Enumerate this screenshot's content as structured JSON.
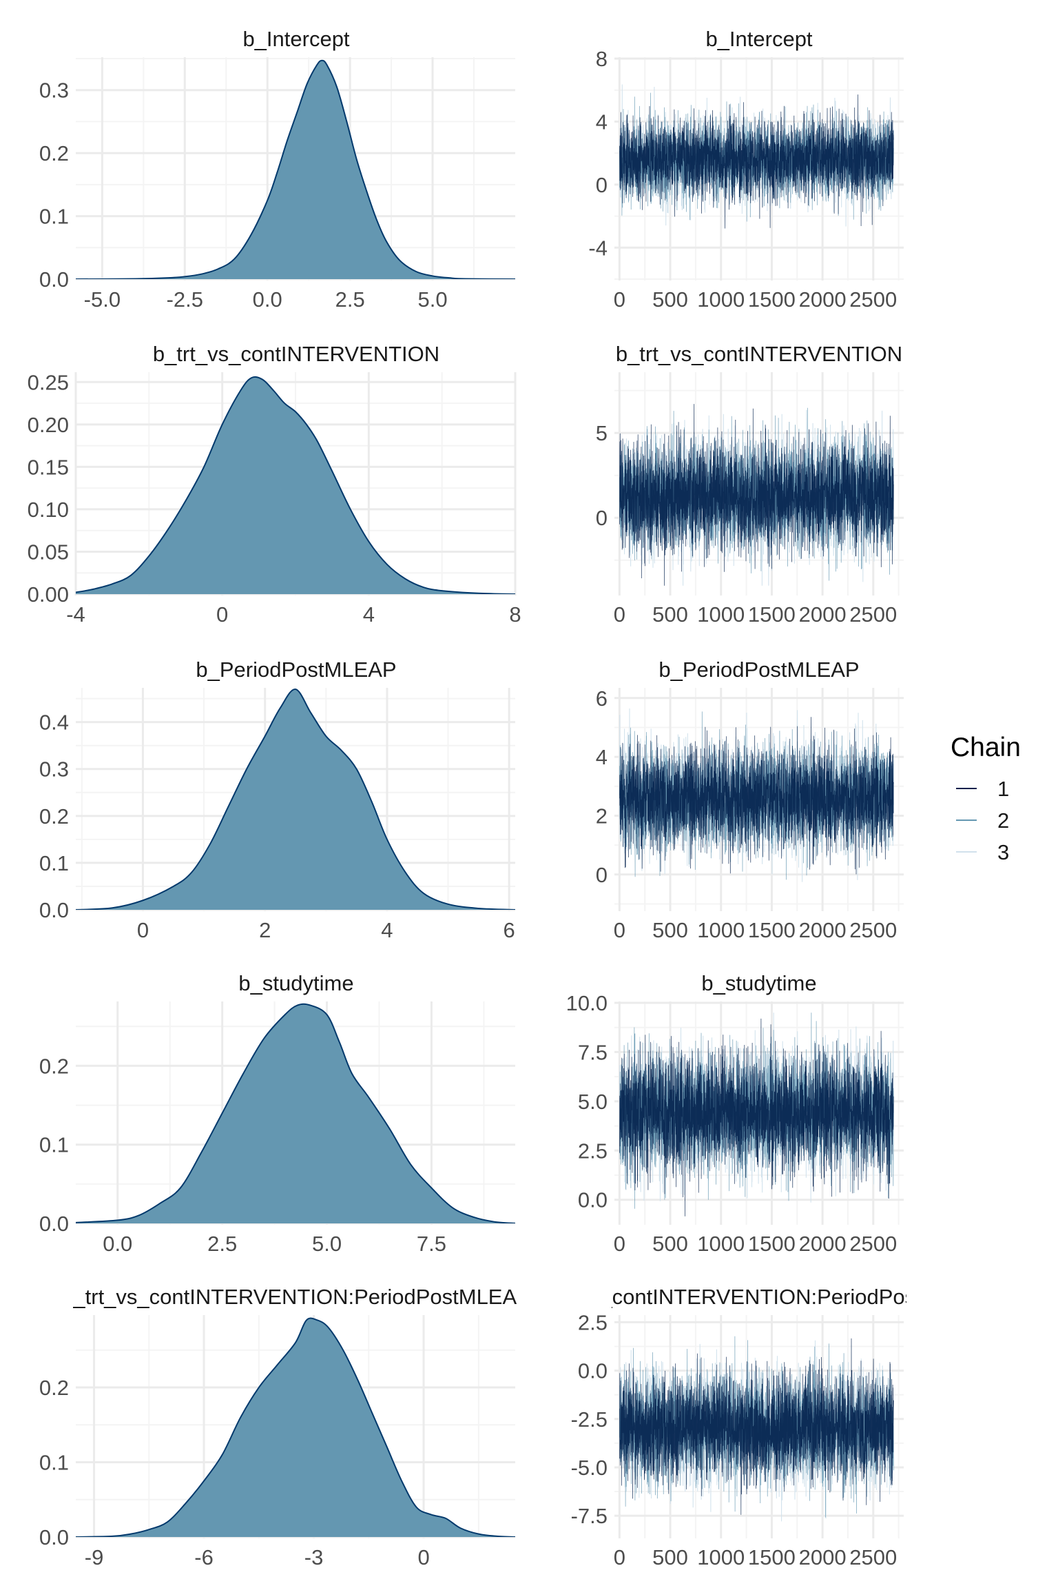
{
  "colors": {
    "density_fill": "#6497b1",
    "density_line": "#03396c",
    "chain_1": "#011f4b",
    "chain_2": "#6497b1",
    "chain_3": "#d1e1ec",
    "grid_major": "#ebebeb",
    "grid_minor": "#f4f4f4"
  },
  "legend": {
    "title": "Chain",
    "placement": "right",
    "items": [
      "1",
      "2",
      "3"
    ]
  },
  "chart_data": [
    {
      "type": "area",
      "kind": "density",
      "title": "b_Intercept",
      "xlim": [
        -5.8,
        7.5
      ],
      "ylim": [
        0,
        0.35
      ],
      "xticks": [
        -5,
        -2.5,
        0,
        2.5,
        5
      ],
      "xtick_labels": [
        "-5.0",
        "-2.5",
        "0.0",
        "2.5",
        "5.0"
      ],
      "yticks": [
        0,
        0.1,
        0.2,
        0.3
      ],
      "ytick_labels": [
        "0.0",
        "0.1",
        "0.2",
        "0.3"
      ],
      "x": [
        -5.8,
        -4,
        -3,
        -2.5,
        -2,
        -1.5,
        -1,
        -0.5,
        0,
        0.3,
        0.6,
        0.9,
        1.2,
        1.5,
        1.65,
        1.8,
        2.1,
        2.4,
        2.7,
        3.0,
        3.3,
        3.6,
        4.0,
        4.5,
        5.0,
        5.5,
        6.0,
        7.5
      ],
      "y": [
        0,
        0.0005,
        0.002,
        0.004,
        0.008,
        0.016,
        0.032,
        0.07,
        0.125,
        0.17,
        0.22,
        0.265,
        0.31,
        0.34,
        0.347,
        0.34,
        0.305,
        0.25,
        0.19,
        0.14,
        0.095,
        0.06,
        0.03,
        0.012,
        0.005,
        0.002,
        0.0005,
        0
      ]
    },
    {
      "type": "line",
      "kind": "trace",
      "title": "b_Intercept",
      "xlim": [
        -50,
        2800
      ],
      "ylim": [
        -6,
        8
      ],
      "xticks": [
        0,
        500,
        1000,
        1500,
        2000,
        2500
      ],
      "xtick_labels": [
        "0",
        "500",
        "1000",
        "1500",
        "2000",
        "2500"
      ],
      "yticks": [
        -4,
        0,
        4,
        8
      ],
      "ytick_labels": [
        "-4",
        "0",
        "4",
        "8"
      ],
      "iterations": 2700,
      "chains": [
        {
          "name": "1",
          "center": 1.6,
          "spread": 1.2,
          "min": -5.5,
          "max": 7.5
        },
        {
          "name": "2",
          "center": 1.6,
          "spread": 1.2,
          "min": -5.5,
          "max": 7.5
        },
        {
          "name": "3",
          "center": 1.6,
          "spread": 1.2,
          "min": -5.5,
          "max": 7.5
        }
      ]
    },
    {
      "type": "area",
      "kind": "density",
      "title": "b_trt_vs_contINTERVENTION",
      "xlim": [
        -4,
        8
      ],
      "ylim": [
        0,
        0.26
      ],
      "xticks": [
        -4,
        0,
        4,
        8
      ],
      "xtick_labels": [
        "-4",
        "0",
        "4",
        "8"
      ],
      "yticks": [
        0,
        0.05,
        0.1,
        0.15,
        0.2,
        0.25
      ],
      "ytick_labels": [
        "0.00",
        "0.05",
        "0.10",
        "0.15",
        "0.20",
        "0.25"
      ],
      "x": [
        -4,
        -3.5,
        -3,
        -2.5,
        -2,
        -1.5,
        -1,
        -0.5,
        0,
        0.5,
        0.8,
        1.1,
        1.4,
        1.7,
        2.0,
        2.3,
        2.6,
        3.0,
        3.5,
        4.0,
        4.5,
        5.0,
        5.5,
        6.0,
        7.0,
        8.0
      ],
      "y": [
        0.002,
        0.006,
        0.012,
        0.022,
        0.045,
        0.075,
        0.11,
        0.15,
        0.2,
        0.24,
        0.255,
        0.253,
        0.24,
        0.225,
        0.215,
        0.2,
        0.18,
        0.145,
        0.1,
        0.062,
        0.035,
        0.018,
        0.008,
        0.004,
        0.001,
        0
      ]
    },
    {
      "type": "line",
      "kind": "trace",
      "title": "b_trt_vs_contINTERVENTION",
      "xlim": [
        -50,
        2800
      ],
      "ylim": [
        -4.5,
        8.5
      ],
      "xticks": [
        0,
        500,
        1000,
        1500,
        2000,
        2500
      ],
      "xtick_labels": [
        "0",
        "500",
        "1000",
        "1500",
        "2000",
        "2500"
      ],
      "yticks": [
        0,
        5
      ],
      "ytick_labels": [
        "0",
        "5"
      ],
      "iterations": 2700,
      "chains": [
        {
          "name": "1",
          "center": 1.3,
          "spread": 1.55,
          "min": -4,
          "max": 8
        },
        {
          "name": "2",
          "center": 1.3,
          "spread": 1.55,
          "min": -4,
          "max": 8
        },
        {
          "name": "3",
          "center": 1.3,
          "spread": 1.55,
          "min": -4,
          "max": 8
        }
      ]
    },
    {
      "type": "area",
      "kind": "density",
      "title": "b_PeriodPostMLEAP",
      "xlim": [
        -1.1,
        6.1
      ],
      "ylim": [
        0,
        0.47
      ],
      "xticks": [
        0,
        2,
        4,
        6
      ],
      "xtick_labels": [
        "0",
        "2",
        "4",
        "6"
      ],
      "yticks": [
        0,
        0.1,
        0.2,
        0.3,
        0.4
      ],
      "ytick_labels": [
        "0.0",
        "0.1",
        "0.2",
        "0.3",
        "0.4"
      ],
      "x": [
        -1.1,
        -0.5,
        0,
        0.5,
        0.8,
        1.1,
        1.4,
        1.7,
        2.0,
        2.25,
        2.5,
        2.75,
        3.0,
        3.25,
        3.5,
        3.75,
        4.0,
        4.3,
        4.6,
        5.0,
        5.5,
        6.1
      ],
      "y": [
        0,
        0.004,
        0.02,
        0.05,
        0.08,
        0.14,
        0.22,
        0.3,
        0.37,
        0.43,
        0.47,
        0.42,
        0.37,
        0.34,
        0.3,
        0.23,
        0.15,
        0.08,
        0.035,
        0.012,
        0.003,
        0
      ]
    },
    {
      "type": "line",
      "kind": "trace",
      "title": "b_PeriodPostMLEAP",
      "xlim": [
        -50,
        2800
      ],
      "ylim": [
        -1.2,
        6.3
      ],
      "xticks": [
        0,
        500,
        1000,
        1500,
        2000,
        2500
      ],
      "xtick_labels": [
        "0",
        "500",
        "1000",
        "1500",
        "2000",
        "2500"
      ],
      "yticks": [
        0,
        2,
        4,
        6
      ],
      "ytick_labels": [
        "0",
        "2",
        "4",
        "6"
      ],
      "iterations": 2700,
      "chains": [
        {
          "name": "1",
          "center": 2.6,
          "spread": 0.85,
          "min": -1,
          "max": 6
        },
        {
          "name": "2",
          "center": 2.6,
          "spread": 0.85,
          "min": -1,
          "max": 6
        },
        {
          "name": "3",
          "center": 2.6,
          "spread": 0.85,
          "min": -1,
          "max": 6
        }
      ]
    },
    {
      "type": "area",
      "kind": "density",
      "title": "b_studytime",
      "xlim": [
        -1.0,
        9.5
      ],
      "ylim": [
        0,
        0.28
      ],
      "xticks": [
        0,
        2.5,
        5,
        7.5
      ],
      "xtick_labels": [
        "0.0",
        "2.5",
        "5.0",
        "7.5"
      ],
      "yticks": [
        0,
        0.1,
        0.2
      ],
      "ytick_labels": [
        "0.0",
        "0.1",
        "0.2"
      ],
      "x": [
        -1.0,
        0,
        0.5,
        1.0,
        1.5,
        2.0,
        2.5,
        3.0,
        3.5,
        4.0,
        4.3,
        4.6,
        5.0,
        5.3,
        5.6,
        6.0,
        6.5,
        7.0,
        7.5,
        8.0,
        8.5,
        9.0,
        9.5
      ],
      "y": [
        0.001,
        0.004,
        0.01,
        0.025,
        0.045,
        0.09,
        0.14,
        0.19,
        0.235,
        0.265,
        0.277,
        0.277,
        0.265,
        0.23,
        0.19,
        0.16,
        0.12,
        0.075,
        0.045,
        0.02,
        0.008,
        0.002,
        0
      ]
    },
    {
      "type": "line",
      "kind": "trace",
      "title": "b_studytime",
      "xlim": [
        -50,
        2800
      ],
      "ylim": [
        -1.2,
        10.0
      ],
      "xticks": [
        0,
        500,
        1000,
        1500,
        2000,
        2500
      ],
      "xtick_labels": [
        "0",
        "500",
        "1000",
        "1500",
        "2000",
        "2500"
      ],
      "yticks": [
        0,
        2.5,
        5,
        7.5,
        10
      ],
      "ytick_labels": [
        "0.0",
        "2.5",
        "5.0",
        "7.5",
        "10.0"
      ],
      "iterations": 2700,
      "chains": [
        {
          "name": "1",
          "center": 4.4,
          "spread": 1.45,
          "min": -1,
          "max": 9.5
        },
        {
          "name": "2",
          "center": 4.4,
          "spread": 1.45,
          "min": -1,
          "max": 9.5
        },
        {
          "name": "3",
          "center": 4.4,
          "spread": 1.45,
          "min": -1,
          "max": 9.5
        }
      ]
    },
    {
      "type": "area",
      "kind": "density",
      "title": "b_trt_vs_contINTERVENTION:PeriodPostMLEAP",
      "xlim": [
        -9.5,
        2.5
      ],
      "ylim": [
        0,
        0.295
      ],
      "xticks": [
        -9,
        -6,
        -3,
        0
      ],
      "xtick_labels": [
        "-9",
        "-6",
        "-3",
        "0"
      ],
      "yticks": [
        0,
        0.1,
        0.2
      ],
      "ytick_labels": [
        "0.0",
        "0.1",
        "0.2"
      ],
      "x": [
        -9.5,
        -8.5,
        -8,
        -7.5,
        -7,
        -6.5,
        -6,
        -5.5,
        -5,
        -4.5,
        -4,
        -3.5,
        -3.2,
        -2.9,
        -2.6,
        -2.2,
        -1.8,
        -1.4,
        -1,
        -0.6,
        -0.2,
        0.2,
        0.6,
        1.0,
        1.5,
        2.0,
        2.5
      ],
      "y": [
        0,
        0.001,
        0.004,
        0.01,
        0.02,
        0.045,
        0.075,
        0.11,
        0.16,
        0.2,
        0.23,
        0.26,
        0.29,
        0.29,
        0.28,
        0.25,
        0.21,
        0.165,
        0.12,
        0.075,
        0.04,
        0.03,
        0.025,
        0.012,
        0.004,
        0.001,
        0
      ]
    },
    {
      "type": "line",
      "kind": "trace",
      "title": "b_trt_vs_contINTERVENTION:PeriodPostMLEAP",
      "xlim": [
        -50,
        2800
      ],
      "ylim": [
        -8.6,
        2.8
      ],
      "xticks": [
        0,
        500,
        1000,
        1500,
        2000,
        2500
      ],
      "xtick_labels": [
        "0",
        "500",
        "1000",
        "1500",
        "2000",
        "2500"
      ],
      "yticks": [
        2.5,
        0,
        -2.5,
        -5,
        -7.5
      ],
      "ytick_labels": [
        "2.5",
        "0.0",
        "-2.5",
        "-5.0",
        "-7.5"
      ],
      "iterations": 2700,
      "chains": [
        {
          "name": "1",
          "center": -3.0,
          "spread": 1.35,
          "min": -8.5,
          "max": 2.5
        },
        {
          "name": "2",
          "center": -3.0,
          "spread": 1.35,
          "min": -8.5,
          "max": 2.5
        },
        {
          "name": "3",
          "center": -3.0,
          "spread": 1.35,
          "min": -8.5,
          "max": 2.5
        }
      ]
    }
  ]
}
